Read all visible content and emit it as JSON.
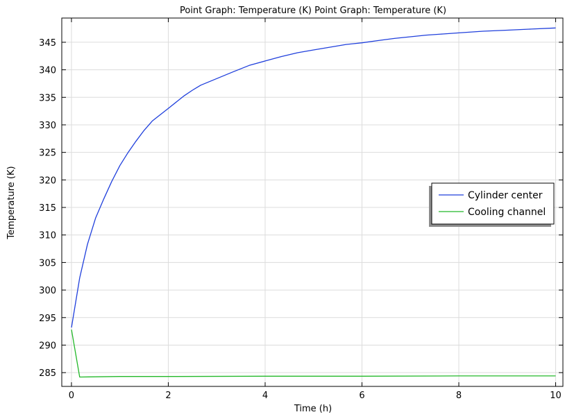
{
  "chart_data": {
    "type": "line",
    "title": "Point Graph: Temperature (K)  Point Graph: Temperature (K)",
    "xlabel": "Time (h)",
    "ylabel": "Temperature (K)",
    "xlim": [
      -0.2,
      10.15
    ],
    "ylim": [
      282.5,
      349.4
    ],
    "xticks": [
      0,
      2,
      4,
      6,
      8,
      10
    ],
    "yticks": [
      285,
      290,
      295,
      300,
      305,
      310,
      315,
      320,
      325,
      330,
      335,
      340,
      345
    ],
    "grid": true,
    "legend_position": "right",
    "series": [
      {
        "name": "Cylinder center",
        "color": "#1f3fdc",
        "x": [
          0,
          0.17,
          0.33,
          0.5,
          0.67,
          0.83,
          1.0,
          1.17,
          1.33,
          1.5,
          1.67,
          2.0,
          2.33,
          2.5,
          2.67,
          3.0,
          3.33,
          3.67,
          4.0,
          4.33,
          4.67,
          5.0,
          5.33,
          5.67,
          6.0,
          6.33,
          6.67,
          7.0,
          7.33,
          7.67,
          8.0,
          8.5,
          9.0,
          9.5,
          10.0
        ],
        "y": [
          293.2,
          302.2,
          308.3,
          313.1,
          316.6,
          319.7,
          322.6,
          325.0,
          327.0,
          329.0,
          330.7,
          333.0,
          335.3,
          336.3,
          337.2,
          338.4,
          339.6,
          340.8,
          341.6,
          342.4,
          343.1,
          343.6,
          344.1,
          344.6,
          344.9,
          345.3,
          345.7,
          346.0,
          346.3,
          346.5,
          346.7,
          347.0,
          347.2,
          347.4,
          347.6
        ]
      },
      {
        "name": "Cooling channel",
        "color": "#22b829",
        "x": [
          0,
          0.17,
          1.0,
          2.0,
          4.0,
          6.0,
          8.0,
          10.0
        ],
        "y": [
          292.8,
          284.2,
          284.3,
          284.3,
          284.35,
          284.35,
          284.4,
          284.4
        ]
      }
    ]
  }
}
